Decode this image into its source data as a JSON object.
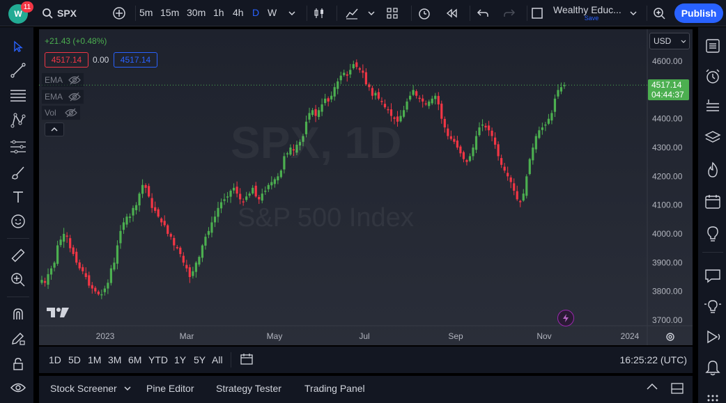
{
  "topbar": {
    "notification_count": "11",
    "symbol": "SPX",
    "intervals": [
      "5m",
      "15m",
      "30m",
      "1h",
      "4h",
      "D",
      "W"
    ],
    "active_interval": "D",
    "layout_name": "Wealthy Educ...",
    "layout_save": "Save",
    "publish_label": "Publish"
  },
  "legend": {
    "change": "+21.43 (+0.48%)",
    "bid": "4517.14",
    "spread": "0.00",
    "ask": "4517.14",
    "indicators": [
      "EMA",
      "EMA",
      "Vol"
    ]
  },
  "watermark": {
    "symbol": "SPX, 1D",
    "name": "S&P 500 Index"
  },
  "price_scale": {
    "currency": "USD",
    "labels": [
      "4600.00",
      "4500.00",
      "4400.00",
      "4300.00",
      "4200.00",
      "4100.00",
      "4000.00",
      "3900.00",
      "3800.00",
      "3700.00"
    ],
    "current_price": "4517.14",
    "countdown": "04:44:37"
  },
  "time_scale": {
    "labels": [
      "2023",
      "Mar",
      "May",
      "Jul",
      "Sep",
      "Nov",
      "2024"
    ]
  },
  "colors": {
    "up": "#26a69a",
    "down": "#ef5350",
    "up_candle": "#4caf50",
    "down_candle": "#f23645",
    "accent": "#2962ff",
    "price_label": "#4caf50"
  },
  "range_bar": {
    "ranges": [
      "1D",
      "5D",
      "1M",
      "3M",
      "6M",
      "YTD",
      "1Y",
      "5Y",
      "All"
    ],
    "clock": "16:25:22 (UTC)"
  },
  "bottom_panel": {
    "tabs": [
      "Stock Screener",
      "Pine Editor",
      "Strategy Tester",
      "Trading Panel"
    ]
  },
  "chart_data": {
    "type": "candlestick",
    "y_range": [
      3700,
      4620
    ],
    "x_start": "2023-01-01",
    "x_end": "2023-11-17",
    "closes": [
      3840,
      3830,
      3860,
      3880,
      3900,
      3960,
      3980,
      4000,
      3990,
      3950,
      3930,
      3900,
      3880,
      3870,
      3850,
      3820,
      3810,
      3800,
      3790,
      3790,
      3810,
      3830,
      3880,
      3900,
      3960,
      4010,
      4040,
      4060,
      4060,
      4090,
      4100,
      4140,
      4170,
      4160,
      4130,
      4090,
      4080,
      4060,
      4040,
      4030,
      4000,
      3990,
      3960,
      3950,
      3930,
      3900,
      3880,
      3850,
      3870,
      3900,
      3920,
      3960,
      3990,
      4010,
      4040,
      4060,
      4090,
      4110,
      4120,
      4130,
      4150,
      4160,
      4140,
      4120,
      4110,
      4130,
      4140,
      4160,
      4130,
      4120,
      4140,
      4150,
      4170,
      4180,
      4190,
      4200,
      4220,
      4270,
      4280,
      4300,
      4290,
      4310,
      4320,
      4340,
      4390,
      4420,
      4430,
      4410,
      4430,
      4450,
      4470,
      4460,
      4480,
      4510,
      4530,
      4550,
      4560,
      4550,
      4570,
      4590,
      4580,
      4570,
      4560,
      4520,
      4510,
      4480,
      4490,
      4470,
      4460,
      4440,
      4430,
      4410,
      4400,
      4390,
      4410,
      4430,
      4460,
      4480,
      4500,
      4480,
      4470,
      4460,
      4450,
      4460,
      4470,
      4480,
      4450,
      4400,
      4370,
      4340,
      4330,
      4320,
      4300,
      4280,
      4260,
      4250,
      4270,
      4300,
      4340,
      4370,
      4380,
      4370,
      4360,
      4340,
      4310,
      4270,
      4240,
      4220,
      4200,
      4180,
      4150,
      4120,
      4110,
      4140,
      4200,
      4260,
      4300,
      4340,
      4360,
      4370,
      4380,
      4400,
      4420,
      4470,
      4500,
      4510,
      4517
    ]
  }
}
